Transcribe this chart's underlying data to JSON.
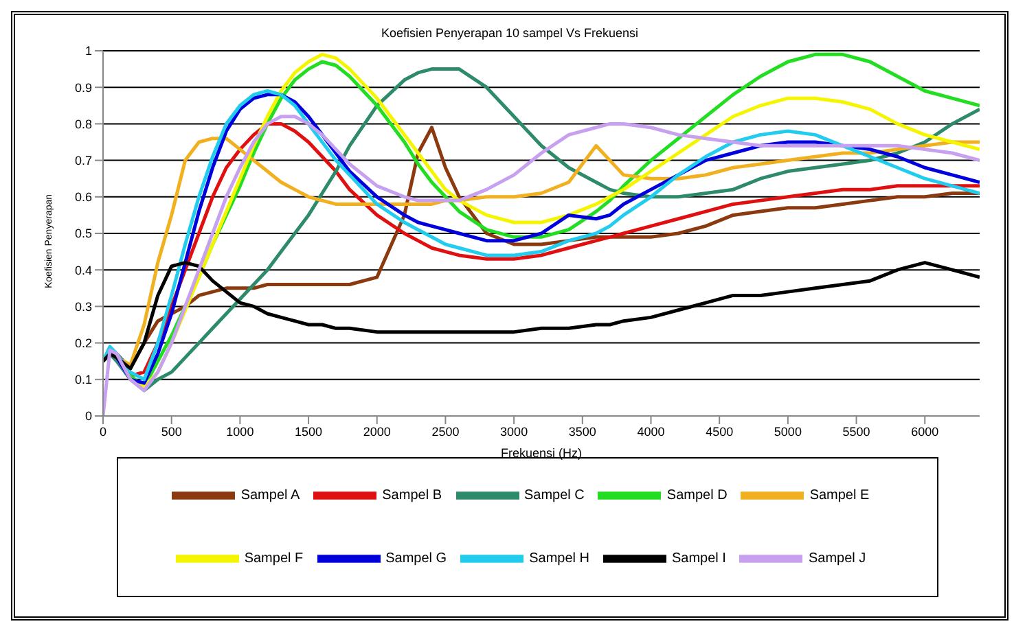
{
  "chart_data": {
    "type": "line",
    "title": "Koefisien Penyerapan 10 sampel Vs Frekuensi",
    "xlabel": "Frekuensi (Hz)",
    "ylabel": "Koefisien Penyerapan",
    "x": [
      0,
      50,
      100,
      200,
      300,
      400,
      500,
      600,
      700,
      800,
      900,
      1000,
      1100,
      1200,
      1300,
      1400,
      1500,
      1600,
      1700,
      1800,
      2000,
      2200,
      2300,
      2400,
      2500,
      2600,
      2800,
      3000,
      3200,
      3400,
      3600,
      3700,
      3800,
      4000,
      4200,
      4400,
      4600,
      4800,
      5000,
      5200,
      5400,
      5600,
      5800,
      6000,
      6200,
      6400
    ],
    "xlim": [
      0,
      6400
    ],
    "xticks": [
      0,
      500,
      1000,
      1500,
      2000,
      2500,
      3000,
      3500,
      4000,
      4500,
      5000,
      5500,
      6000
    ],
    "ylim": [
      0,
      1
    ],
    "yticks": [
      0,
      0.1,
      0.2,
      0.3,
      0.4,
      0.5,
      0.6,
      0.7,
      0.8,
      0.9,
      1
    ],
    "grid": "y",
    "legend": "bottom",
    "series": [
      {
        "name": "Sampel A",
        "color": "#8b3a0f",
        "values": [
          0.15,
          0.18,
          0.17,
          0.13,
          0.2,
          0.26,
          0.28,
          0.3,
          0.33,
          0.34,
          0.35,
          0.35,
          0.35,
          0.36,
          0.36,
          0.36,
          0.36,
          0.36,
          0.36,
          0.36,
          0.38,
          0.55,
          0.72,
          0.79,
          0.68,
          0.6,
          0.5,
          0.47,
          0.47,
          0.48,
          0.49,
          0.49,
          0.49,
          0.49,
          0.5,
          0.52,
          0.55,
          0.56,
          0.57,
          0.57,
          0.58,
          0.59,
          0.6,
          0.6,
          0.61,
          0.61
        ]
      },
      {
        "name": "Sampel B",
        "color": "#e01010",
        "values": [
          null,
          null,
          0.16,
          0.11,
          0.12,
          0.2,
          0.3,
          0.4,
          0.5,
          0.6,
          0.68,
          0.73,
          0.77,
          0.8,
          0.8,
          0.78,
          0.75,
          0.71,
          0.67,
          0.62,
          0.55,
          0.5,
          0.48,
          0.46,
          0.45,
          0.44,
          0.43,
          0.43,
          0.44,
          0.46,
          0.48,
          0.49,
          0.5,
          0.52,
          0.54,
          0.56,
          0.58,
          0.59,
          0.6,
          0.61,
          0.62,
          0.62,
          0.63,
          0.63,
          0.63,
          0.63
        ]
      },
      {
        "name": "Sampel C",
        "color": "#2e8b6a",
        "values": [
          0.15,
          0.17,
          0.15,
          0.1,
          0.07,
          0.1,
          0.12,
          0.16,
          0.2,
          0.24,
          0.28,
          0.32,
          0.36,
          0.4,
          0.45,
          0.5,
          0.55,
          0.61,
          0.67,
          0.74,
          0.85,
          0.92,
          0.94,
          0.95,
          0.95,
          0.95,
          0.9,
          0.82,
          0.74,
          0.68,
          0.64,
          0.62,
          0.61,
          0.6,
          0.6,
          0.61,
          0.62,
          0.65,
          0.67,
          0.68,
          0.69,
          0.7,
          0.72,
          0.75,
          0.8,
          0.84
        ]
      },
      {
        "name": "Sampel D",
        "color": "#22dd22",
        "values": [
          null,
          null,
          0.16,
          0.11,
          0.08,
          0.15,
          0.22,
          0.3,
          0.38,
          0.47,
          0.55,
          0.63,
          0.72,
          0.8,
          0.87,
          0.92,
          0.95,
          0.97,
          0.96,
          0.93,
          0.85,
          0.75,
          0.69,
          0.64,
          0.6,
          0.56,
          0.51,
          0.49,
          0.49,
          0.51,
          0.56,
          0.59,
          0.63,
          0.7,
          0.76,
          0.82,
          0.88,
          0.93,
          0.97,
          0.99,
          0.99,
          0.97,
          0.93,
          0.89,
          0.87,
          0.85
        ]
      },
      {
        "name": "Sampel E",
        "color": "#f0b020",
        "values": [
          0.15,
          0.18,
          0.16,
          0.14,
          0.25,
          0.42,
          0.55,
          0.7,
          0.75,
          0.76,
          0.76,
          0.73,
          0.7,
          0.67,
          0.64,
          0.62,
          0.6,
          0.59,
          0.58,
          0.58,
          0.58,
          0.58,
          0.58,
          0.58,
          0.59,
          0.59,
          0.6,
          0.6,
          0.61,
          0.64,
          0.74,
          0.7,
          0.66,
          0.65,
          0.65,
          0.66,
          0.68,
          0.69,
          0.7,
          0.71,
          0.72,
          0.72,
          0.73,
          0.74,
          0.75,
          0.75
        ]
      },
      {
        "name": "Sampel F",
        "color": "#f5f500",
        "values": [
          null,
          null,
          0.16,
          0.1,
          0.08,
          0.12,
          0.2,
          0.29,
          0.38,
          0.47,
          0.56,
          0.65,
          0.74,
          0.82,
          0.89,
          0.94,
          0.97,
          0.99,
          0.98,
          0.95,
          0.87,
          0.77,
          0.72,
          0.67,
          0.62,
          0.59,
          0.55,
          0.53,
          0.53,
          0.55,
          0.58,
          0.6,
          0.62,
          0.67,
          0.72,
          0.77,
          0.82,
          0.85,
          0.87,
          0.87,
          0.86,
          0.84,
          0.8,
          0.77,
          0.75,
          0.73
        ]
      },
      {
        "name": "Sampel G",
        "color": "#0000dd",
        "values": [
          0.15,
          0.18,
          0.16,
          0.1,
          0.09,
          0.17,
          0.28,
          0.42,
          0.56,
          0.68,
          0.78,
          0.84,
          0.87,
          0.88,
          0.88,
          0.86,
          0.82,
          0.77,
          0.72,
          0.67,
          0.6,
          0.55,
          0.53,
          0.52,
          0.51,
          0.5,
          0.48,
          0.48,
          0.5,
          0.55,
          0.54,
          0.55,
          0.58,
          0.62,
          0.66,
          0.7,
          0.72,
          0.74,
          0.75,
          0.75,
          0.74,
          0.73,
          0.71,
          0.68,
          0.66,
          0.64
        ]
      },
      {
        "name": "Sampel H",
        "color": "#22ccee",
        "values": [
          0.15,
          0.19,
          0.17,
          0.12,
          0.1,
          0.2,
          0.33,
          0.47,
          0.6,
          0.71,
          0.8,
          0.85,
          0.88,
          0.89,
          0.88,
          0.85,
          0.8,
          0.75,
          0.7,
          0.66,
          0.58,
          0.53,
          0.51,
          0.49,
          0.47,
          0.46,
          0.44,
          0.44,
          0.45,
          0.48,
          0.5,
          0.52,
          0.55,
          0.6,
          0.66,
          0.71,
          0.75,
          0.77,
          0.78,
          0.77,
          0.74,
          0.71,
          0.68,
          0.65,
          0.63,
          0.61
        ]
      },
      {
        "name": "Sampel I",
        "color": "#000000",
        "values": [
          0.15,
          0.17,
          0.16,
          0.13,
          0.2,
          0.33,
          0.41,
          0.42,
          0.41,
          0.37,
          0.34,
          0.31,
          0.3,
          0.28,
          0.27,
          0.26,
          0.25,
          0.25,
          0.24,
          0.24,
          0.23,
          0.23,
          0.23,
          0.23,
          0.23,
          0.23,
          0.23,
          0.23,
          0.24,
          0.24,
          0.25,
          0.25,
          0.26,
          0.27,
          0.29,
          0.31,
          0.33,
          0.33,
          0.34,
          0.35,
          0.36,
          0.37,
          0.4,
          0.42,
          0.4,
          0.38
        ]
      },
      {
        "name": "Sampel J",
        "color": "#c8a0f0",
        "values": [
          0,
          0.18,
          0.17,
          0.1,
          0.07,
          0.12,
          0.2,
          0.3,
          0.4,
          0.5,
          0.6,
          0.68,
          0.75,
          0.8,
          0.82,
          0.82,
          0.8,
          0.77,
          0.73,
          0.69,
          0.63,
          0.6,
          0.59,
          0.59,
          0.59,
          0.59,
          0.62,
          0.66,
          0.72,
          0.77,
          0.79,
          0.8,
          0.8,
          0.79,
          0.77,
          0.76,
          0.75,
          0.74,
          0.74,
          0.74,
          0.74,
          0.74,
          0.74,
          0.73,
          0.72,
          0.7
        ]
      }
    ]
  }
}
